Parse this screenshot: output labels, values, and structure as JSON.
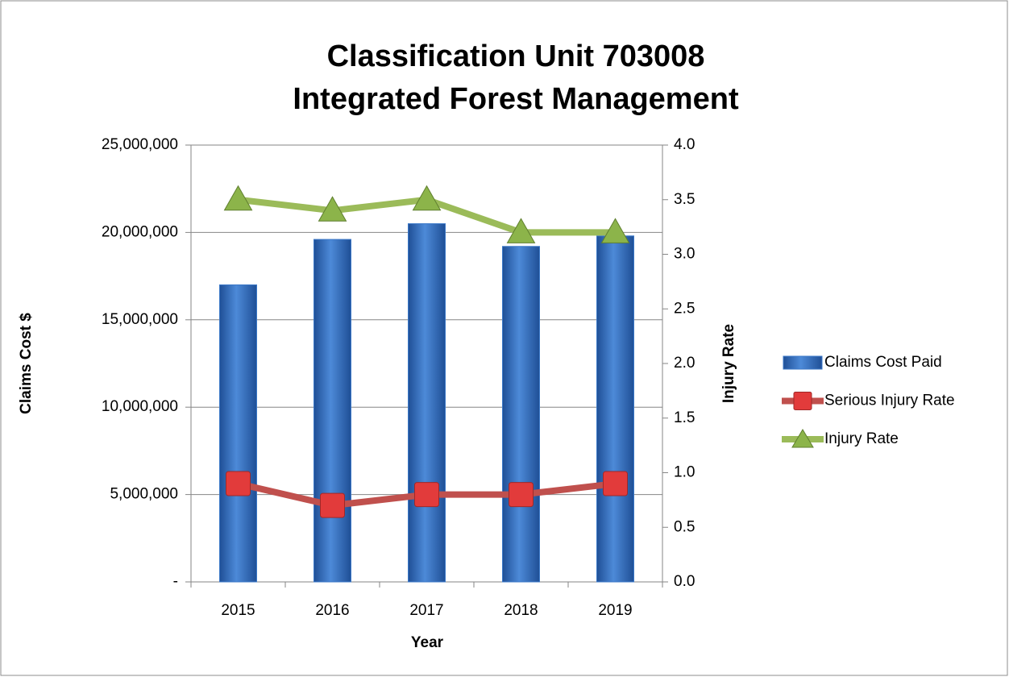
{
  "chart_data": {
    "type": "bar-line",
    "title": [
      "Classification Unit 703008",
      "Integrated Forest Management"
    ],
    "x_label": "Year",
    "y_label": "Claims Cost $",
    "y2_label": "Injury Rate",
    "categories": [
      "2015",
      "2016",
      "2017",
      "2018",
      "2019"
    ],
    "series": [
      {
        "name": "Claims Cost Paid",
        "type": "bar",
        "color": "#3b78c8",
        "values": [
          17000000,
          19600000,
          20500000,
          19200000,
          19800000
        ]
      },
      {
        "name": "Serious Injury Rate",
        "type": "line",
        "marker": "square",
        "axis": "y2",
        "color": "#c0504d",
        "values": [
          0.9,
          0.7,
          0.8,
          0.8,
          0.9
        ]
      },
      {
        "name": "Injury Rate",
        "type": "line",
        "marker": "triangle",
        "axis": "y2",
        "color": "#9bbb59",
        "values": [
          3.5,
          3.4,
          3.5,
          3.2,
          3.2
        ]
      }
    ],
    "ylim": [
      0,
      25000000
    ],
    "yticks": [
      {
        "value": 0,
        "label": "-"
      },
      {
        "value": 5000000,
        "label": "5,000,000"
      },
      {
        "value": 10000000,
        "label": "10,000,000"
      },
      {
        "value": 15000000,
        "label": "15,000,000"
      },
      {
        "value": 20000000,
        "label": "20,000,000"
      },
      {
        "value": 25000000,
        "label": "25,000,000"
      }
    ],
    "y2lim": [
      0,
      4
    ],
    "y2ticks": [
      {
        "value": 0,
        "label": "0.0"
      },
      {
        "value": 0.5,
        "label": "0.5"
      },
      {
        "value": 1,
        "label": "1.0"
      },
      {
        "value": 1.5,
        "label": "1.5"
      },
      {
        "value": 2,
        "label": "2.0"
      },
      {
        "value": 2.5,
        "label": "2.5"
      },
      {
        "value": 3,
        "label": "3.0"
      },
      {
        "value": 3.5,
        "label": "3.5"
      },
      {
        "value": 4,
        "label": "4.0"
      }
    ],
    "grid": true,
    "legend": "right"
  }
}
